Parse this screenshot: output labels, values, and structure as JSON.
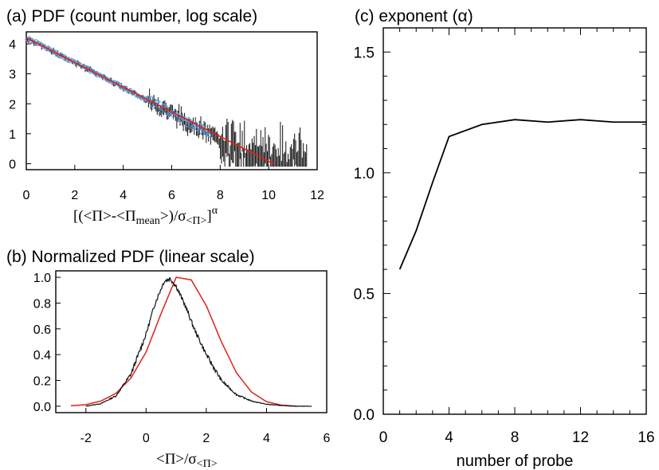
{
  "chart_data": [
    {
      "id": "a",
      "type": "scatter",
      "title": "(a) PDF (count number, log scale)",
      "xlabel": "[(<Π>-<Π",
      "xlabel_sub": "mean",
      "xlabel_mid": ">)/σ",
      "xlabel_sub2": "<Π>",
      "xlabel_tail": "]",
      "xlabel_sup": "α",
      "xlim": [
        0,
        12
      ],
      "ylim": [
        -0.2,
        4.4
      ],
      "xticks": [
        0,
        2,
        4,
        6,
        8,
        10,
        12
      ],
      "yticks": [
        0,
        1,
        2,
        3,
        4
      ],
      "colors": {
        "data": "#111111",
        "points": "#5b9bd5",
        "fit": "#e0201b"
      },
      "series": [
        {
          "kind": "fit-line",
          "x": [
            0,
            10.2
          ],
          "y": [
            4.2,
            0
          ]
        },
        {
          "kind": "histogram-counts",
          "x": [
            0,
            0.5,
            1,
            1.5,
            2,
            2.5,
            3,
            3.5,
            4,
            4.5,
            5,
            5.5,
            6,
            6.5,
            7,
            7.5,
            8,
            8.5,
            9,
            9.5,
            10,
            10.5,
            11,
            11.5
          ],
          "y": [
            4.2,
            4.0,
            3.78,
            3.58,
            3.38,
            3.17,
            2.96,
            2.76,
            2.54,
            2.33,
            2.12,
            1.9,
            1.7,
            1.45,
            1.25,
            1.0,
            0.8,
            0.55,
            0.35,
            0.3,
            0.2,
            0.15,
            0.1,
            0.05
          ]
        }
      ]
    },
    {
      "id": "b",
      "type": "line",
      "title": "(b) Normalized PDF (linear scale)",
      "xlabel": "<Π>/σ",
      "xlabel_sub": "<Π>",
      "xlim": [
        -3,
        6
      ],
      "ylim": [
        -0.05,
        1.05
      ],
      "xticks": [
        -2,
        0,
        2,
        4,
        6
      ],
      "yticks": [
        0.0,
        0.2,
        0.4,
        0.6,
        0.8,
        1.0
      ],
      "colors": {
        "data": "#111111",
        "fit": "#e0201b"
      },
      "series": [
        {
          "kind": "data",
          "x": [
            -2,
            -1.5,
            -1,
            -0.5,
            0,
            0.3,
            0.6,
            0.8,
            1,
            1.3,
            1.6,
            2,
            2.5,
            3,
            3.5,
            4,
            4.5,
            5,
            5.5
          ],
          "y": [
            0.0,
            0.02,
            0.08,
            0.25,
            0.56,
            0.8,
            0.97,
            0.99,
            0.93,
            0.78,
            0.6,
            0.4,
            0.2,
            0.09,
            0.04,
            0.015,
            0.005,
            0.0,
            0.0
          ]
        },
        {
          "kind": "fit",
          "x": [
            -2.5,
            -2,
            -1.5,
            -1,
            -0.5,
            0,
            0.5,
            1,
            1.5,
            2,
            2.5,
            3,
            3.5,
            4,
            4.5,
            5
          ],
          "y": [
            0.003,
            0.012,
            0.04,
            0.1,
            0.22,
            0.42,
            0.72,
            1.0,
            0.98,
            0.78,
            0.5,
            0.26,
            0.11,
            0.035,
            0.008,
            0.0
          ]
        }
      ]
    },
    {
      "id": "c",
      "type": "line",
      "title": "(c) exponent (α)",
      "xlabel": "number of probe",
      "xlim": [
        0,
        16
      ],
      "ylim": [
        0,
        1.6
      ],
      "xticks": [
        0,
        4,
        8,
        12,
        16
      ],
      "yticks": [
        "0.0",
        "0.5",
        "1.0",
        "1.5"
      ],
      "colors": {
        "line": "#000000"
      },
      "series": [
        {
          "x": [
            1,
            2,
            3,
            4,
            6,
            8,
            10,
            12,
            14,
            16
          ],
          "y": [
            0.6,
            0.76,
            0.96,
            1.15,
            1.2,
            1.22,
            1.21,
            1.22,
            1.21,
            1.21
          ]
        }
      ]
    }
  ]
}
